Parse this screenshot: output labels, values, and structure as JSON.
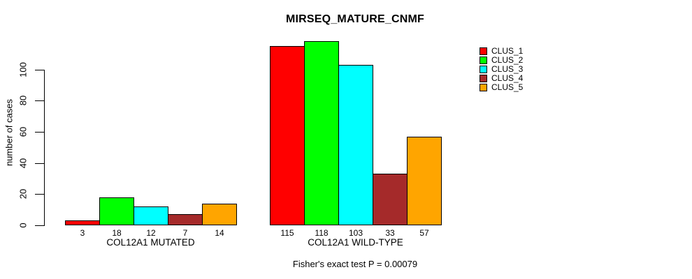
{
  "title": "MIRSEQ_MATURE_CNMF",
  "footer": "Fisher's exact test P = 0.00079",
  "y_axis": {
    "label": "number of cases",
    "ticks": [
      0,
      20,
      40,
      60,
      80,
      100
    ]
  },
  "legend": {
    "items": [
      {
        "label": "CLUS_1",
        "color": "#FF0000"
      },
      {
        "label": "CLUS_2",
        "color": "#00FF00"
      },
      {
        "label": "CLUS_3",
        "color": "#00FFFF"
      },
      {
        "label": "CLUS_4",
        "color": "#A52A2A"
      },
      {
        "label": "CLUS_5",
        "color": "#FFA500"
      }
    ]
  },
  "chart_data": {
    "type": "bar",
    "title": "MIRSEQ_MATURE_CNMF",
    "xlabel": "",
    "ylabel": "number of cases",
    "ylim": [
      0,
      118
    ],
    "grid": false,
    "legend_position": "right",
    "bar_value_labels": true,
    "categories": [
      "COL12A1 MUTATED",
      "COL12A1 WILD-TYPE"
    ],
    "series": [
      {
        "name": "CLUS_1",
        "color": "#FF0000",
        "values": [
          3,
          115
        ]
      },
      {
        "name": "CLUS_2",
        "color": "#00FF00",
        "values": [
          18,
          118
        ]
      },
      {
        "name": "CLUS_3",
        "color": "#00FFFF",
        "values": [
          12,
          103
        ]
      },
      {
        "name": "CLUS_4",
        "color": "#A52A2A",
        "values": [
          7,
          33
        ]
      },
      {
        "name": "CLUS_5",
        "color": "#FFA500",
        "values": [
          14,
          57
        ]
      }
    ],
    "annotation": "Fisher's exact test P = 0.00079"
  }
}
